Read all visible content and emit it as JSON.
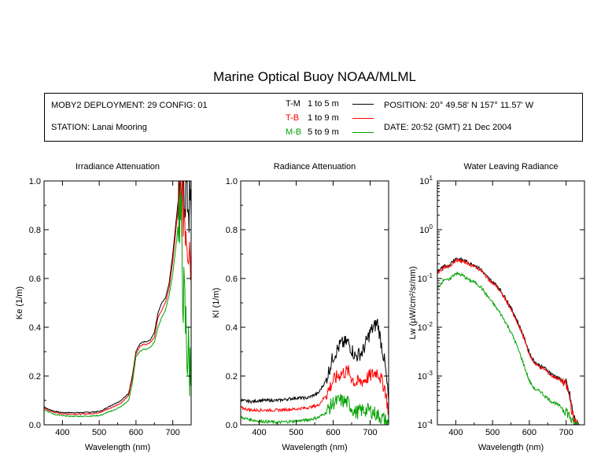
{
  "title": "Marine Optical Buoy NOAA/MLML",
  "info": {
    "deployment": "MOBY2 DEPLOYMENT: 29 CONFIG: 01",
    "station": "STATION: Lanai Mooring",
    "position": "POSITION: 20° 49.58' N   157° 11.57' W",
    "date": "DATE: 20:52 (GMT) 21 Dec 2004",
    "legend": [
      {
        "code": "T-M",
        "range": "1 to 5  m",
        "color": "#000000"
      },
      {
        "code": "T-B",
        "range": "1 to 9  m",
        "color": "#ff0000"
      },
      {
        "code": "M-B",
        "range": "5 to 9  m",
        "color": "#00a000"
      }
    ]
  },
  "chart_data": [
    {
      "type": "line",
      "title": "Irradiance Attenuation",
      "xlabel": "Wavelength (nm)",
      "ylabel": "Ke  (1/m)",
      "xlim": [
        350,
        750
      ],
      "ylim": [
        0,
        1.0
      ],
      "xticks": [
        "400",
        "500",
        "600",
        "700"
      ],
      "yticks": [
        "0.0",
        "0.2",
        "0.4",
        "0.6",
        "0.8",
        "1.0"
      ],
      "series": [
        {
          "name": "T-M",
          "color": "#000000",
          "x": [
            350,
            360,
            380,
            400,
            420,
            450,
            480,
            500,
            510,
            520,
            540,
            560,
            580,
            590,
            600,
            610,
            620,
            630,
            640,
            650,
            660,
            670,
            680,
            690,
            700,
            710,
            720,
            730,
            740,
            750
          ],
          "y": [
            0.075,
            0.065,
            0.055,
            0.05,
            0.05,
            0.05,
            0.052,
            0.055,
            0.06,
            0.07,
            0.085,
            0.1,
            0.13,
            0.2,
            0.3,
            0.33,
            0.34,
            0.34,
            0.35,
            0.38,
            0.46,
            0.5,
            0.52,
            0.58,
            0.7,
            0.85,
            1.0,
            1.0,
            0.95,
            0.85
          ]
        },
        {
          "name": "T-B",
          "color": "#ff0000",
          "x": [
            350,
            360,
            380,
            400,
            420,
            450,
            480,
            500,
            510,
            520,
            540,
            560,
            580,
            590,
            600,
            610,
            620,
            630,
            640,
            650,
            660,
            670,
            680,
            690,
            700,
            710,
            720,
            730,
            740,
            750
          ],
          "y": [
            0.07,
            0.06,
            0.05,
            0.045,
            0.044,
            0.044,
            0.046,
            0.05,
            0.055,
            0.062,
            0.075,
            0.09,
            0.12,
            0.19,
            0.29,
            0.32,
            0.33,
            0.33,
            0.34,
            0.36,
            0.44,
            0.47,
            0.5,
            0.56,
            0.67,
            0.82,
            0.95,
            0.9,
            0.8,
            0.72
          ]
        },
        {
          "name": "M-B",
          "color": "#00a000",
          "x": [
            350,
            360,
            380,
            400,
            420,
            450,
            480,
            500,
            510,
            520,
            540,
            560,
            580,
            590,
            600,
            610,
            620,
            630,
            640,
            650,
            660,
            670,
            680,
            690,
            700,
            710,
            720,
            730,
            740,
            750
          ],
          "y": [
            0.065,
            0.055,
            0.042,
            0.037,
            0.035,
            0.035,
            0.036,
            0.038,
            0.042,
            0.05,
            0.06,
            0.075,
            0.1,
            0.17,
            0.28,
            0.3,
            0.31,
            0.31,
            0.32,
            0.34,
            0.4,
            0.44,
            0.47,
            0.53,
            0.62,
            0.75,
            0.9,
            0.5,
            0.3,
            0.2
          ]
        }
      ]
    },
    {
      "type": "line",
      "title": "Radiance Attenuation",
      "xlabel": "Wavelength (nm)",
      "ylabel": "Kl  (1/m)",
      "xlim": [
        350,
        750
      ],
      "ylim": [
        0,
        1.0
      ],
      "xticks": [
        "400",
        "500",
        "600",
        "700"
      ],
      "yticks": [
        "0.0",
        "0.2",
        "0.4",
        "0.6",
        "0.8",
        "1.0"
      ],
      "series": [
        {
          "name": "T-M",
          "color": "#000000",
          "x": [
            350,
            380,
            400,
            450,
            500,
            530,
            560,
            580,
            600,
            620,
            640,
            660,
            680,
            700,
            720,
            740,
            750
          ],
          "y": [
            0.1,
            0.095,
            0.1,
            0.1,
            0.11,
            0.11,
            0.13,
            0.18,
            0.28,
            0.33,
            0.34,
            0.28,
            0.3,
            0.38,
            0.42,
            0.25,
            0.1
          ]
        },
        {
          "name": "T-B",
          "color": "#ff0000",
          "x": [
            350,
            380,
            400,
            450,
            500,
            530,
            560,
            580,
            600,
            620,
            640,
            660,
            680,
            700,
            720,
            740,
            750
          ],
          "y": [
            0.07,
            0.06,
            0.06,
            0.06,
            0.065,
            0.07,
            0.08,
            0.12,
            0.18,
            0.21,
            0.22,
            0.17,
            0.18,
            0.2,
            0.22,
            0.15,
            0.05
          ]
        },
        {
          "name": "M-B",
          "color": "#00a000",
          "x": [
            350,
            380,
            400,
            450,
            500,
            530,
            560,
            580,
            600,
            620,
            640,
            660,
            680,
            700,
            720,
            740,
            750
          ],
          "y": [
            0.03,
            0.02,
            0.015,
            0.01,
            0.015,
            0.02,
            0.03,
            0.05,
            0.09,
            0.1,
            0.09,
            0.05,
            0.06,
            0.06,
            0.04,
            0.02,
            0.0
          ]
        }
      ]
    },
    {
      "type": "line",
      "title": "Water Leaving Radiance",
      "xlabel": "Wavelength (nm)",
      "ylabel": "Lw  (µW/cm²/sr/nm)",
      "log_y": true,
      "xlim": [
        350,
        750
      ],
      "ylim": [
        0.0001,
        10
      ],
      "xticks": [
        "400",
        "500",
        "600",
        "700"
      ],
      "yticks": [
        "10",
        "10",
        "10",
        "10",
        "10",
        "10"
      ],
      "ytick_exps": [
        "1",
        "0",
        "-1",
        "-2",
        "-3",
        "-4"
      ],
      "series": [
        {
          "name": "T-M",
          "color": "#000000",
          "x": [
            350,
            360,
            370,
            380,
            390,
            400,
            410,
            420,
            430,
            440,
            450,
            460,
            470,
            480,
            490,
            500,
            510,
            520,
            530,
            540,
            550,
            560,
            570,
            580,
            590,
            600,
            610,
            620,
            630,
            640,
            650,
            660,
            670,
            680,
            690,
            700,
            710,
            720,
            730,
            735
          ],
          "y": [
            0.14,
            0.16,
            0.18,
            0.18,
            0.22,
            0.26,
            0.25,
            0.24,
            0.22,
            0.2,
            0.19,
            0.17,
            0.15,
            0.12,
            0.1,
            0.085,
            0.075,
            0.06,
            0.045,
            0.035,
            0.025,
            0.018,
            0.012,
            0.008,
            0.005,
            0.003,
            0.0022,
            0.0018,
            0.0016,
            0.0015,
            0.0013,
            0.0011,
            0.001,
            0.0009,
            0.0008,
            0.0007,
            0.0004,
            0.00015,
            0.0001,
            0.0001
          ]
        },
        {
          "name": "T-B",
          "color": "#ff0000",
          "x": [
            350,
            360,
            370,
            380,
            390,
            400,
            410,
            420,
            430,
            440,
            450,
            460,
            470,
            480,
            490,
            500,
            510,
            520,
            530,
            540,
            550,
            560,
            570,
            580,
            590,
            600,
            610,
            620,
            630,
            640,
            650,
            660,
            670,
            680,
            690,
            700,
            710,
            720,
            730,
            735
          ],
          "y": [
            0.13,
            0.15,
            0.17,
            0.17,
            0.2,
            0.24,
            0.23,
            0.22,
            0.21,
            0.19,
            0.18,
            0.16,
            0.14,
            0.115,
            0.095,
            0.08,
            0.07,
            0.055,
            0.042,
            0.032,
            0.023,
            0.016,
            0.011,
            0.0075,
            0.0048,
            0.0028,
            0.002,
            0.0017,
            0.0015,
            0.0014,
            0.0012,
            0.001,
            0.00095,
            0.00085,
            0.00075,
            0.00065,
            0.00035,
            0.00013,
            0.0001,
            0.0001
          ]
        },
        {
          "name": "M-B",
          "color": "#00a000",
          "x": [
            350,
            360,
            370,
            380,
            390,
            400,
            410,
            420,
            430,
            440,
            450,
            460,
            470,
            480,
            490,
            500,
            510,
            520,
            530,
            540,
            550,
            560,
            570,
            580,
            590,
            600,
            610,
            620,
            630,
            640,
            650,
            660,
            670,
            680,
            690,
            700,
            710,
            720,
            730,
            735
          ],
          "y": [
            0.06,
            0.08,
            0.1,
            0.09,
            0.11,
            0.13,
            0.12,
            0.115,
            0.1,
            0.09,
            0.085,
            0.075,
            0.065,
            0.05,
            0.04,
            0.032,
            0.025,
            0.02,
            0.015,
            0.011,
            0.008,
            0.0055,
            0.0035,
            0.0022,
            0.0013,
            0.0008,
            0.0006,
            0.0005,
            0.0005,
            0.0004,
            0.00035,
            0.0003,
            0.00028,
            0.00025,
            0.00022,
            0.0002,
            0.00015,
            0.0001,
            0.0001,
            0.0001
          ]
        }
      ]
    }
  ]
}
